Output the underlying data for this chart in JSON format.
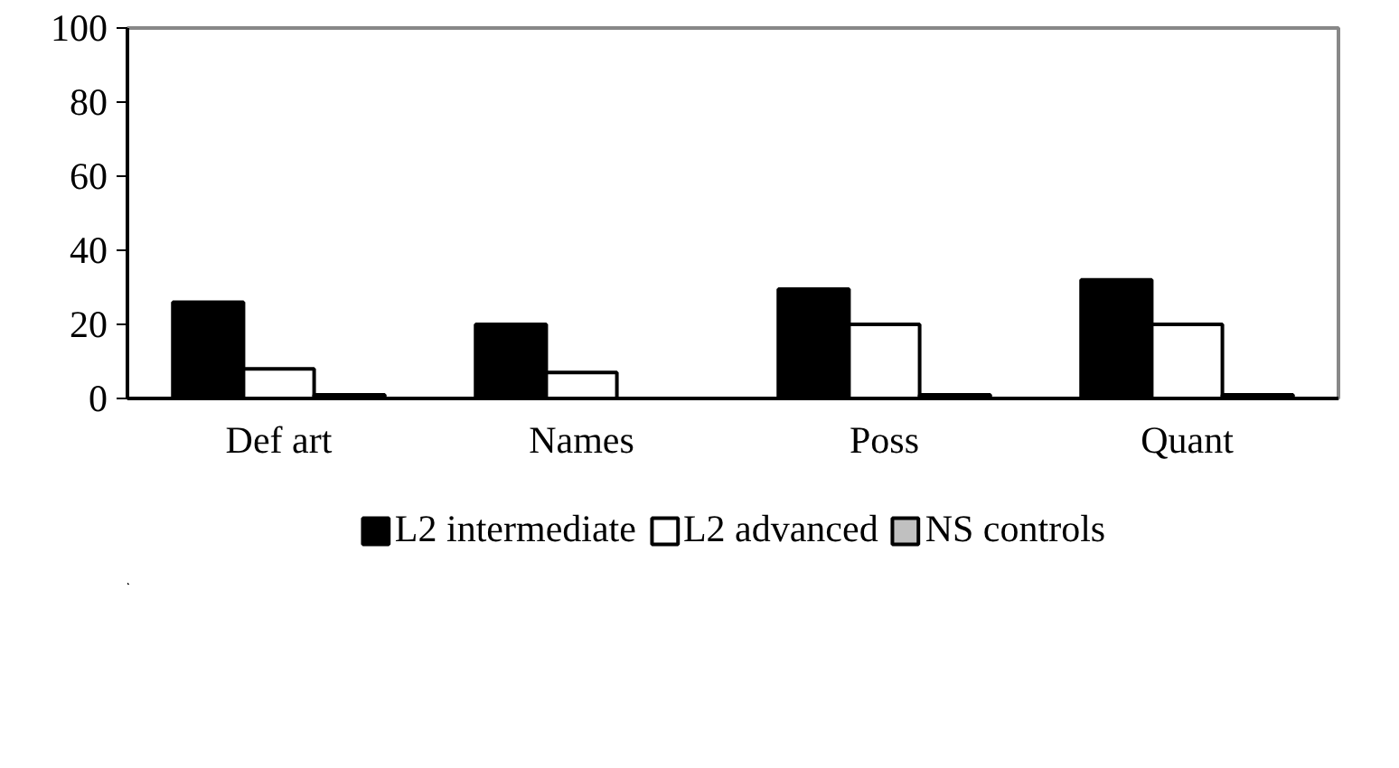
{
  "chart_data": {
    "type": "bar",
    "categories": [
      "Def art",
      "Names",
      "Poss",
      "Quant"
    ],
    "series": [
      {
        "name": "L2 intermediate",
        "color": "#000000",
        "values": [
          26,
          20,
          29.5,
          32
        ]
      },
      {
        "name": "L2 advanced",
        "color": "#ffffff",
        "values": [
          8,
          7,
          20,
          20
        ]
      },
      {
        "name": "NS controls",
        "color": "#c0c0c0",
        "values": [
          1,
          0,
          1,
          1
        ]
      }
    ],
    "ylim": [
      0,
      100
    ],
    "yticks": [
      0,
      20,
      40,
      60,
      80,
      100
    ],
    "grid": false,
    "legend": "bottom"
  }
}
